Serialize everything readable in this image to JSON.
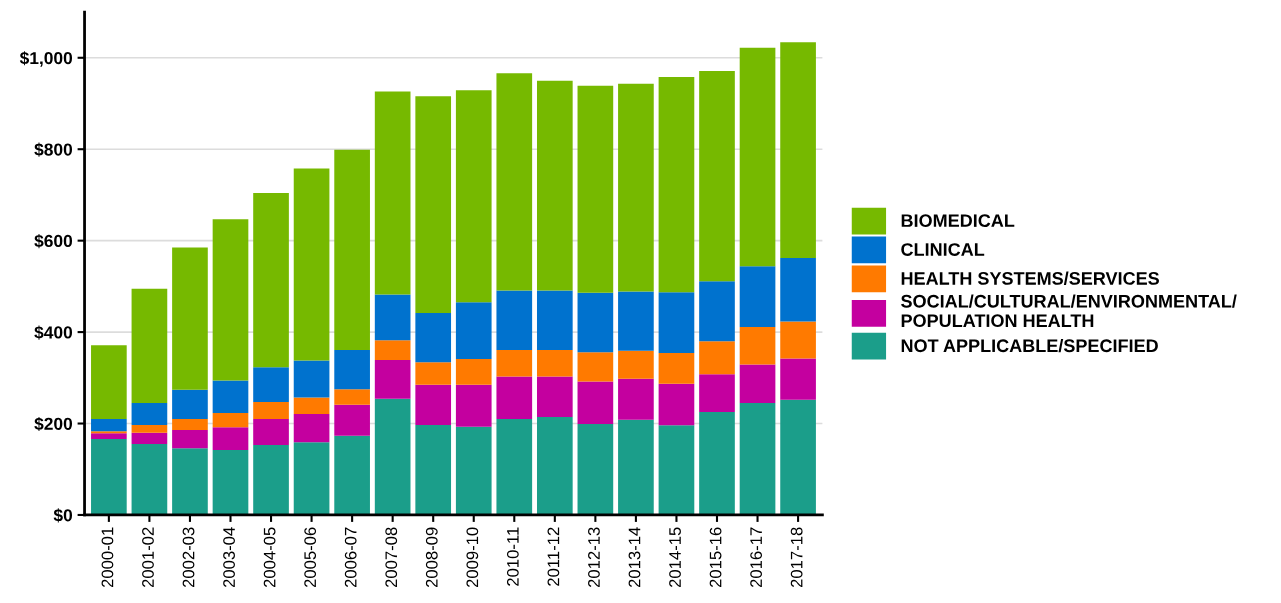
{
  "chart_data": {
    "type": "bar",
    "stacked": true,
    "categories": [
      "2000-01",
      "2001-02",
      "2002-03",
      "2003-04",
      "2004-05",
      "2005-06",
      "2006-07",
      "2007-08",
      "2008-09",
      "2009-10",
      "2010-11",
      "2011-12",
      "2012-13",
      "2013-14",
      "2014-15",
      "2015-16",
      "2016-17",
      "2017-18"
    ],
    "series": [
      {
        "name": "NOT APPLICABLE/SPECIFIED",
        "color": "#1b9e8a",
        "values": [
          166,
          155,
          146,
          142,
          153,
          159,
          173,
          254,
          197,
          193,
          210,
          214,
          199,
          208,
          196,
          225,
          245,
          252
        ]
      },
      {
        "name": "SOCIAL/CULTURAL/ENVIRONMENTAL/ POPULATION HEALTH",
        "color": "#c4009f",
        "values": [
          13,
          25,
          40,
          50,
          57,
          62,
          68,
          85,
          88,
          92,
          93,
          89,
          93,
          90,
          91,
          83,
          84,
          90
        ]
      },
      {
        "name": "HEALTH SYSTEMS/SERVICES",
        "color": "#ff7a00",
        "values": [
          4,
          17,
          24,
          31,
          37,
          36,
          34,
          43,
          49,
          56,
          58,
          58,
          64,
          61,
          67,
          72,
          82,
          81
        ]
      },
      {
        "name": "CLINICAL",
        "color": "#0072ce",
        "values": [
          27,
          48,
          64,
          71,
          76,
          81,
          86,
          100,
          108,
          124,
          130,
          130,
          130,
          130,
          133,
          131,
          133,
          139
        ]
      },
      {
        "name": "BIOMEDICAL",
        "color": "#76b900",
        "values": [
          161,
          250,
          311,
          353,
          381,
          420,
          438,
          444,
          474,
          464,
          475,
          459,
          453,
          454,
          471,
          460,
          478,
          472
        ]
      }
    ],
    "ylim": [
      0,
      1100
    ],
    "yticks": [
      {
        "value": 0,
        "label": "$0"
      },
      {
        "value": 200,
        "label": "$200"
      },
      {
        "value": 400,
        "label": "$400"
      },
      {
        "value": 600,
        "label": "$600"
      },
      {
        "value": 800,
        "label": "$800"
      },
      {
        "value": 1000,
        "label": "$1,000"
      }
    ],
    "grid": "y",
    "legend": "right"
  }
}
